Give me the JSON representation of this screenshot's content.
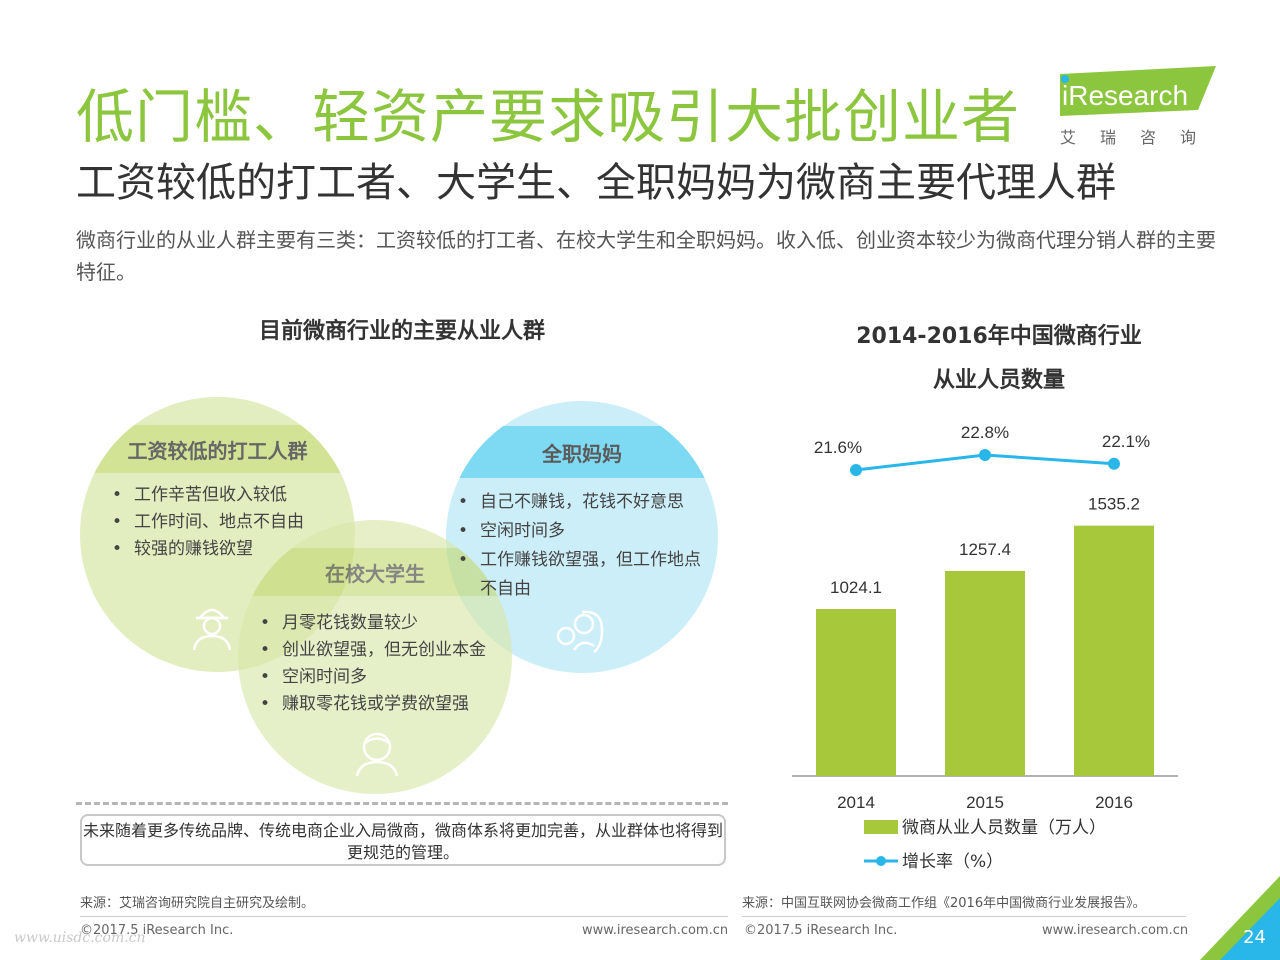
{
  "header": {
    "title": "低门槛、轻资产要求吸引大批创业者",
    "subtitle": "工资较低的打工者、大学生、全职妈妈为微商主要代理人群",
    "description": "微商行业的从业人群主要有三类：工资较低的打工者、在校大学生和全职妈妈。收入低、创业资本较少为微商代理分销人群的主要特征。"
  },
  "logo": {
    "brand": "iResearch",
    "cn": "艾瑞咨询"
  },
  "left": {
    "section_title": "目前微商行业的主要从业人群",
    "groups": [
      {
        "name": "工资较低的打工人群",
        "points": [
          "工作辛苦但收入较低",
          "工作时间、地点不自由",
          "较强的赚钱欲望"
        ],
        "icon": "worker-icon"
      },
      {
        "name": "全职妈妈",
        "points": [
          "自己不赚钱，花钱不好意思",
          "空闲时间多",
          "工作赚钱欲望强，但工作地点不自由"
        ],
        "icon": "mother-baby-icon"
      },
      {
        "name": "在校大学生",
        "points": [
          "月零花钱数量较少",
          "创业欲望强，但无创业本金",
          "空闲时间多",
          "赚取零花钱或学费欲望强"
        ],
        "icon": "student-icon"
      }
    ],
    "note": "未来随着更多传统品牌、传统电商企业入局微商，微商体系将更加完善，从业群体也将得到更规范的管理。",
    "source": "来源：艾瑞咨询研究院自主研究及绘制。",
    "copyright": "©2017.5 iResearch Inc.",
    "website": "www.iresearch.com.cn"
  },
  "right": {
    "source": "来源：中国互联网协会微商工作组《2016年中国微商行业发展报告》。",
    "copyright": "©2017.5 iResearch Inc.",
    "website": "www.iresearch.com.cn"
  },
  "chart_data": {
    "type": "bar",
    "title": "2014-2016年中国微商行业从业人员数量",
    "title_lines": [
      "2014-2016年中国微商行业",
      "从业人员数量"
    ],
    "categories": [
      "2014",
      "2015",
      "2016"
    ],
    "series": [
      {
        "name": "微商从业人员数量（万人）",
        "type": "bar",
        "values": [
          1024.1,
          1257.4,
          1535.2
        ],
        "value_labels": [
          "1024.1",
          "1257.4",
          "1535.2"
        ],
        "color": "#a6c83a"
      },
      {
        "name": "增长率（%）",
        "type": "line",
        "values": [
          21.6,
          22.8,
          22.1
        ],
        "value_labels": [
          "21.6%",
          "22.8%",
          "22.1%"
        ],
        "color": "#29b6e8"
      }
    ],
    "grid": false,
    "legend": "bottom"
  },
  "page": {
    "number": "24",
    "watermark": "www.uisdc.com.cn"
  },
  "colors": {
    "green": "#8cc63f",
    "bar": "#a6c83a",
    "blue": "#29b6e8",
    "circle_blue": "#bfeaf8",
    "circle_green": "#d9e8ab",
    "band_blue": "#5fd0f0",
    "band_green": "#c3da72"
  }
}
